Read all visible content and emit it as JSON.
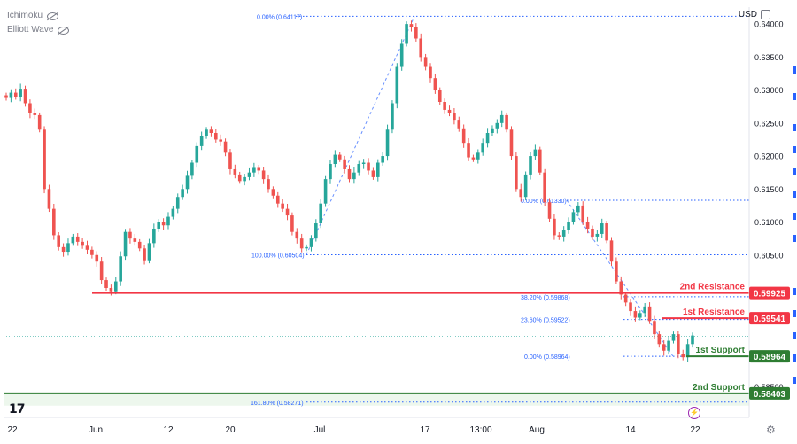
{
  "indicators": [
    "Ichimoku",
    "Elliott Wave"
  ],
  "currency": "USD",
  "logo_text": "17",
  "chart_data": {
    "type": "candlestick",
    "y_ticks": [
      "0.64000",
      "0.63500",
      "0.63000",
      "0.62500",
      "0.62000",
      "0.61500",
      "0.61000",
      "0.60500",
      "0.59500",
      "0.58500"
    ],
    "ylim": [
      0.5812,
      0.6423
    ],
    "x_ticks": [
      "22",
      "Jun",
      "12",
      "20",
      "Jul",
      "17",
      "13:00",
      "Aug",
      "14",
      "22"
    ],
    "close_path": [
      0.6288,
      0.6296,
      0.629,
      0.6302,
      0.628,
      0.6265,
      0.6262,
      0.624,
      0.615,
      0.612,
      0.608,
      0.6062,
      0.6055,
      0.6068,
      0.6078,
      0.607,
      0.6064,
      0.6058,
      0.605,
      0.604,
      0.6012,
      0.6,
      0.5995,
      0.601,
      0.6048,
      0.6085,
      0.6075,
      0.607,
      0.606,
      0.6042,
      0.6068,
      0.609,
      0.61,
      0.6095,
      0.6108,
      0.612,
      0.6138,
      0.615,
      0.617,
      0.619,
      0.6215,
      0.623,
      0.624,
      0.6235,
      0.6225,
      0.6222,
      0.6205,
      0.618,
      0.6172,
      0.6162,
      0.6168,
      0.6175,
      0.6182,
      0.6178,
      0.6165,
      0.615,
      0.614,
      0.6128,
      0.612,
      0.611,
      0.6085,
      0.6075,
      0.606,
      0.6062,
      0.6075,
      0.6098,
      0.6128,
      0.6165,
      0.6188,
      0.6202,
      0.6195,
      0.618,
      0.6165,
      0.6175,
      0.6188,
      0.619,
      0.6178,
      0.6168,
      0.619,
      0.62,
      0.624,
      0.628,
      0.6335,
      0.637,
      0.64,
      0.6395,
      0.6378,
      0.635,
      0.6335,
      0.6318,
      0.63,
      0.6282,
      0.627,
      0.6265,
      0.6255,
      0.6242,
      0.622,
      0.6198,
      0.6195,
      0.6205,
      0.622,
      0.6235,
      0.6242,
      0.625,
      0.6262,
      0.624,
      0.62,
      0.615,
      0.6138,
      0.6172,
      0.62,
      0.621,
      0.6175,
      0.613,
      0.6105,
      0.608,
      0.6078,
      0.6088,
      0.61,
      0.6115,
      0.6125,
      0.61,
      0.609,
      0.6078,
      0.6082,
      0.6098,
      0.6072,
      0.604,
      0.601,
      0.599,
      0.5978,
      0.5965,
      0.5955,
      0.5962,
      0.5972,
      0.595,
      0.593,
      0.5915,
      0.5905,
      0.592,
      0.593,
      0.59,
      0.5895,
      0.5915,
      0.5928
    ],
    "fib_levels": [
      {
        "label": "0.00% (0.64117)",
        "value": 0.64117
      },
      {
        "label": "100.00% (0.60504)",
        "value": 0.60504
      },
      {
        "label": "0.00% (0.61330)",
        "value": 0.6133
      },
      {
        "label": "38.20% (0.59868)",
        "value": 0.59868
      },
      {
        "label": "23.60% (0.59522)",
        "value": 0.59522
      },
      {
        "label": "0.00% (0.58964)",
        "value": 0.58964
      },
      {
        "label": "161.80% (0.58271)",
        "value": 0.58271
      }
    ],
    "levels": [
      {
        "name": "2nd Resistance",
        "value": "0.59925",
        "color": "#f23645"
      },
      {
        "name": "1st Resistance",
        "value": "0.59541",
        "color": "#f23645"
      },
      {
        "name": "1st Support",
        "value": "0.58964",
        "color": "#2e7d32"
      },
      {
        "name": "2nd Support",
        "value": "0.58403",
        "color": "#2e7d32"
      }
    ],
    "colors": {
      "up": "#26a69a",
      "down": "#ef5350",
      "fib": "#2962ff",
      "wave": "#2962ff"
    }
  }
}
